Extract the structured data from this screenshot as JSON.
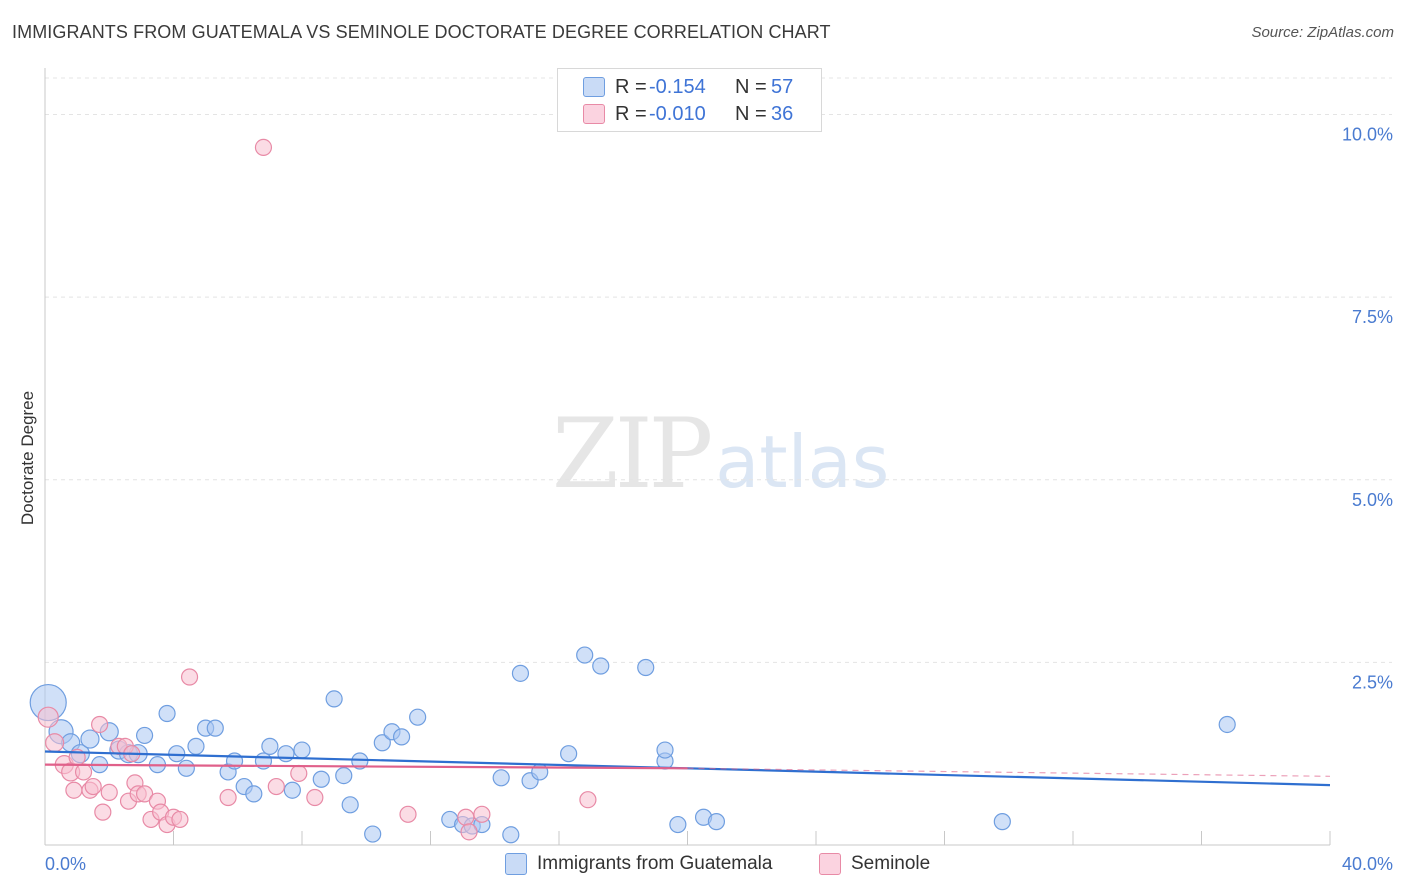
{
  "header": {
    "title": "IMMIGRANTS FROM GUATEMALA VS SEMINOLE DOCTORATE DEGREE CORRELATION CHART",
    "source": "Source: ZipAtlas.com"
  },
  "watermark": {
    "zip": "ZIP",
    "atlas": "atlas"
  },
  "legend": {
    "r_label": "R =",
    "n_label": "N =",
    "rows": [
      {
        "r": "-0.154",
        "n": "57",
        "color": "#a9c6f2",
        "border": "#6f9ee0"
      },
      {
        "r": "-0.010",
        "n": "36",
        "color": "#f7bfd0",
        "border": "#e88aa6"
      }
    ]
  },
  "bottom_legend": [
    {
      "label": "Immigrants from Guatemala",
      "color": "#a9c6f2"
    },
    {
      "label": "Seminole",
      "color": "#f7bfd0"
    }
  ],
  "chart_data": {
    "type": "scatter",
    "title": "IMMIGRANTS FROM GUATEMALA VS SEMINOLE DOCTORATE DEGREE CORRELATION CHART",
    "xlabel": "",
    "ylabel": "Doctorate Degree",
    "xlim": [
      0,
      40
    ],
    "ylim": [
      0,
      10.5
    ],
    "x_tick_labels": [
      "0.0%",
      "40.0%"
    ],
    "y_ticks": [
      2.5,
      5.0,
      7.5,
      10.0
    ],
    "y_tick_labels": [
      "2.5%",
      "5.0%",
      "7.5%",
      "10.0%"
    ],
    "grid": true,
    "series": [
      {
        "name": "Immigrants from Guatemala",
        "color": "#6f9ee0",
        "fill": "#a9c6f2",
        "trend": {
          "x0": 0,
          "y0": 1.28,
          "x1": 40,
          "y1": 0.82,
          "color": "#2f6fd0"
        },
        "points": [
          [
            0.1,
            1.95,
            18
          ],
          [
            0.5,
            1.55,
            12
          ],
          [
            0.8,
            1.4,
            9
          ],
          [
            1.1,
            1.25,
            9
          ],
          [
            1.4,
            1.45,
            9
          ],
          [
            1.7,
            1.1,
            8
          ],
          [
            2.0,
            1.55,
            9
          ],
          [
            2.3,
            1.3,
            9
          ],
          [
            2.6,
            1.25,
            9
          ],
          [
            2.9,
            1.25,
            9
          ],
          [
            3.1,
            1.5,
            8
          ],
          [
            3.5,
            1.1,
            8
          ],
          [
            3.8,
            1.8,
            8
          ],
          [
            4.1,
            1.25,
            8
          ],
          [
            4.4,
            1.05,
            8
          ],
          [
            4.7,
            1.35,
            8
          ],
          [
            5.0,
            1.6,
            8
          ],
          [
            5.3,
            1.6,
            8
          ],
          [
            5.7,
            1.0,
            8
          ],
          [
            5.9,
            1.15,
            8
          ],
          [
            6.2,
            0.8,
            8
          ],
          [
            6.5,
            0.7,
            8
          ],
          [
            6.8,
            1.15,
            8
          ],
          [
            7.0,
            1.35,
            8
          ],
          [
            7.5,
            1.25,
            8
          ],
          [
            7.7,
            0.75,
            8
          ],
          [
            8.0,
            1.3,
            8
          ],
          [
            8.6,
            0.9,
            8
          ],
          [
            9.0,
            2.0,
            8
          ],
          [
            9.3,
            0.95,
            8
          ],
          [
            9.5,
            0.55,
            8
          ],
          [
            9.8,
            1.15,
            8
          ],
          [
            10.2,
            0.15,
            8
          ],
          [
            10.5,
            1.4,
            8
          ],
          [
            10.8,
            1.55,
            8
          ],
          [
            11.1,
            1.48,
            8
          ],
          [
            11.6,
            1.75,
            8
          ],
          [
            12.6,
            0.35,
            8
          ],
          [
            13.0,
            0.28,
            8
          ],
          [
            13.3,
            0.26,
            8
          ],
          [
            13.6,
            0.28,
            8
          ],
          [
            14.2,
            0.92,
            8
          ],
          [
            14.5,
            0.14,
            8
          ],
          [
            14.8,
            2.35,
            8
          ],
          [
            15.1,
            0.88,
            8
          ],
          [
            15.4,
            1.0,
            8
          ],
          [
            16.3,
            1.25,
            8
          ],
          [
            16.8,
            2.6,
            8
          ],
          [
            17.3,
            2.45,
            8
          ],
          [
            18.7,
            2.43,
            8
          ],
          [
            19.3,
            1.15,
            8
          ],
          [
            19.3,
            1.3,
            8
          ],
          [
            19.7,
            0.28,
            8
          ],
          [
            20.5,
            0.38,
            8
          ],
          [
            20.9,
            0.32,
            8
          ],
          [
            29.8,
            0.32,
            8
          ],
          [
            36.8,
            1.65,
            8
          ]
        ]
      },
      {
        "name": "Seminole",
        "color": "#e88aa6",
        "fill": "#f7bfd0",
        "trend": {
          "x0": 0,
          "y0": 1.1,
          "x1": 20.0,
          "y1": 1.05,
          "color": "#e0608a"
        },
        "points": [
          [
            0.1,
            1.75,
            10
          ],
          [
            0.3,
            1.4,
            9
          ],
          [
            0.6,
            1.1,
            9
          ],
          [
            0.8,
            1.0,
            9
          ],
          [
            0.9,
            0.75,
            8
          ],
          [
            1.0,
            1.2,
            8
          ],
          [
            1.2,
            1.0,
            8
          ],
          [
            1.4,
            0.75,
            8
          ],
          [
            1.5,
            0.8,
            8
          ],
          [
            1.7,
            1.65,
            8
          ],
          [
            1.8,
            0.45,
            8
          ],
          [
            2.0,
            0.72,
            8
          ],
          [
            2.3,
            1.35,
            8
          ],
          [
            2.5,
            1.35,
            8
          ],
          [
            2.6,
            0.6,
            8
          ],
          [
            2.8,
            0.85,
            8
          ],
          [
            2.9,
            0.7,
            8
          ],
          [
            3.1,
            0.7,
            8
          ],
          [
            3.3,
            0.35,
            8
          ],
          [
            3.5,
            0.6,
            8
          ],
          [
            3.6,
            0.45,
            8
          ],
          [
            3.8,
            0.28,
            8
          ],
          [
            4.0,
            0.38,
            8
          ],
          [
            4.2,
            0.35,
            8
          ],
          [
            4.5,
            2.3,
            8
          ],
          [
            5.7,
            0.65,
            8
          ],
          [
            6.8,
            9.55,
            8
          ],
          [
            7.2,
            0.8,
            8
          ],
          [
            7.9,
            0.98,
            8
          ],
          [
            8.4,
            0.65,
            8
          ],
          [
            11.3,
            0.42,
            8
          ],
          [
            13.1,
            0.38,
            8
          ],
          [
            13.2,
            0.18,
            8
          ],
          [
            13.6,
            0.42,
            8
          ],
          [
            16.9,
            0.62,
            8
          ],
          [
            2.7,
            1.25,
            8
          ]
        ]
      }
    ]
  }
}
